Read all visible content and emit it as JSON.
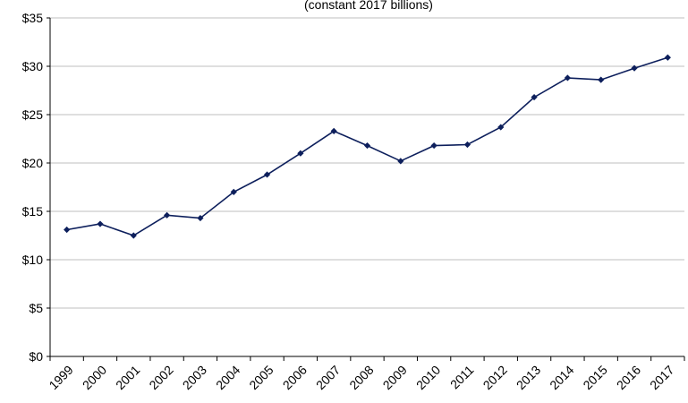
{
  "chart_data": {
    "type": "line",
    "title": "",
    "subtitle": "(constant 2017 billions)",
    "xlabel": "",
    "ylabel": "",
    "categories": [
      "1999",
      "2000",
      "2001",
      "2002",
      "2003",
      "2004",
      "2005",
      "2006",
      "2007",
      "2008",
      "2009",
      "2010",
      "2011",
      "2012",
      "2013",
      "2014",
      "2015",
      "2016",
      "2017"
    ],
    "y_ticks": [
      "$0",
      "$5",
      "$10",
      "$15",
      "$20",
      "$25",
      "$30",
      "$35"
    ],
    "ylim": [
      0,
      35
    ],
    "grid": true,
    "legend": "none",
    "series": [
      {
        "values": [
          13.1,
          13.7,
          12.5,
          14.6,
          14.3,
          17.0,
          18.8,
          21.0,
          23.3,
          21.8,
          20.2,
          21.8,
          21.9,
          23.7,
          26.8,
          28.8,
          28.6,
          29.8,
          30.9
        ],
        "color": "#0d1f5c",
        "marker": "diamond"
      }
    ]
  }
}
